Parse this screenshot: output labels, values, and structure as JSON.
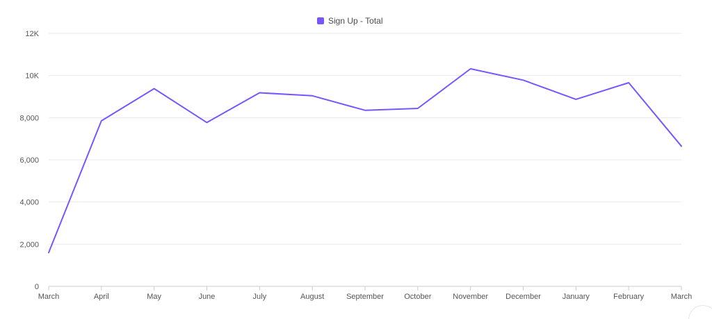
{
  "chart_data": {
    "type": "line",
    "categories": [
      "March",
      "April",
      "May",
      "June",
      "July",
      "August",
      "September",
      "October",
      "November",
      "December",
      "January",
      "February",
      "March"
    ],
    "series": [
      {
        "name": "Sign Up - Total",
        "color": "#7856ff",
        "values": [
          1600,
          7850,
          9380,
          7770,
          9180,
          9040,
          8350,
          8440,
          10320,
          9780,
          8870,
          9660,
          6650
        ]
      }
    ],
    "ylim": [
      0,
      12000
    ],
    "yticks": [
      0,
      2000,
      4000,
      6000,
      8000,
      10000,
      12000
    ],
    "ytick_labels": [
      "0",
      "2,000",
      "4,000",
      "6,000",
      "8,000",
      "10K",
      "12K"
    ],
    "grid": true,
    "legend_position": "top-center",
    "gridline_color": "#e9e9e9",
    "axis_color": "#cccccc"
  }
}
